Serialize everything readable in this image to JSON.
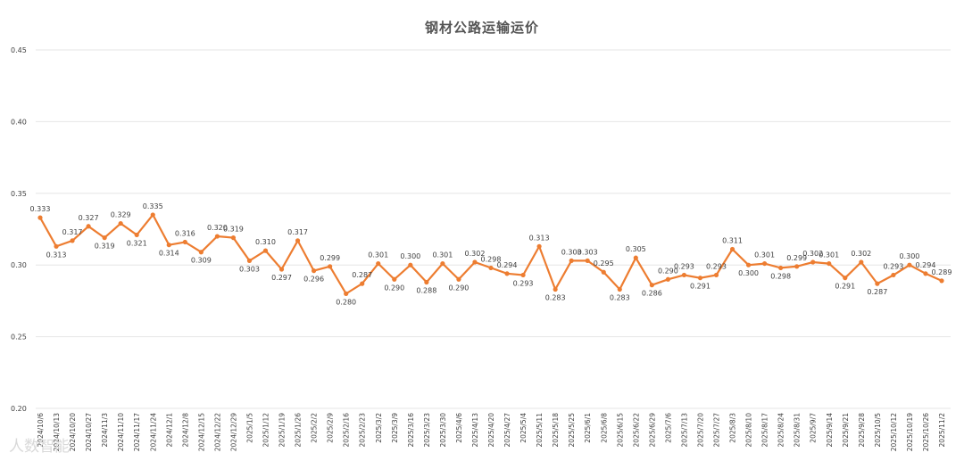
{
  "colors": {
    "line": "#ed7d31",
    "grid": "#e6e6e6",
    "text": "#404040",
    "title": "#555555"
  },
  "watermark": "人数智能",
  "chart_data": {
    "type": "line",
    "title": "钢材公路运输运价",
    "xlabel": "",
    "ylabel": "",
    "ylim": [
      0.2,
      0.45
    ],
    "yticks": [
      "0.20",
      "0.25",
      "0.30",
      "0.35",
      "0.40",
      "0.45"
    ],
    "grid": true,
    "legend": "none",
    "x": [
      "2024/10/6",
      "2024/10/13",
      "2024/10/20",
      "2024/10/27",
      "2024/11/3",
      "2024/11/10",
      "2024/11/17",
      "2024/11/24",
      "2024/12/1",
      "2024/12/8",
      "2024/12/15",
      "2024/12/22",
      "2024/12/29",
      "2025/1/5",
      "2025/1/12",
      "2025/1/19",
      "2025/1/26",
      "2025/2/2",
      "2025/2/9",
      "2025/2/16",
      "2025/2/23",
      "2025/3/2",
      "2025/3/9",
      "2025/3/16",
      "2025/3/23",
      "2025/3/30",
      "2025/4/6",
      "2025/4/13",
      "2025/4/20",
      "2025/4/27",
      "2025/5/4",
      "2025/5/11",
      "2025/5/18",
      "2025/5/25",
      "2025/6/1",
      "2025/6/8",
      "2025/6/15",
      "2025/6/22",
      "2025/6/29",
      "2025/7/6",
      "2025/7/13",
      "2025/7/20",
      "2025/7/27",
      "2025/8/3",
      "2025/8/10",
      "2025/8/17",
      "2025/8/24",
      "2025/8/31",
      "2025/9/7",
      "2025/9/14",
      "2025/9/21",
      "2025/9/28",
      "2025/10/5",
      "2025/10/12",
      "2025/10/19",
      "2025/10/26",
      "2025/11/2"
    ],
    "values": [
      0.333,
      0.313,
      0.317,
      0.327,
      0.319,
      0.329,
      0.321,
      0.335,
      0.314,
      0.316,
      0.309,
      0.32,
      0.319,
      0.303,
      0.31,
      0.297,
      0.317,
      0.296,
      0.299,
      0.28,
      0.287,
      0.301,
      0.29,
      0.3,
      0.288,
      0.301,
      0.29,
      0.302,
      0.298,
      0.294,
      0.293,
      0.313,
      0.283,
      0.303,
      0.303,
      0.295,
      0.283,
      0.305,
      0.286,
      0.29,
      0.293,
      0.291,
      0.293,
      0.311,
      0.3,
      0.301,
      0.298,
      0.299,
      0.302,
      0.301,
      0.291,
      0.302,
      0.287,
      0.293,
      0.3,
      0.294,
      0.289
    ]
  }
}
